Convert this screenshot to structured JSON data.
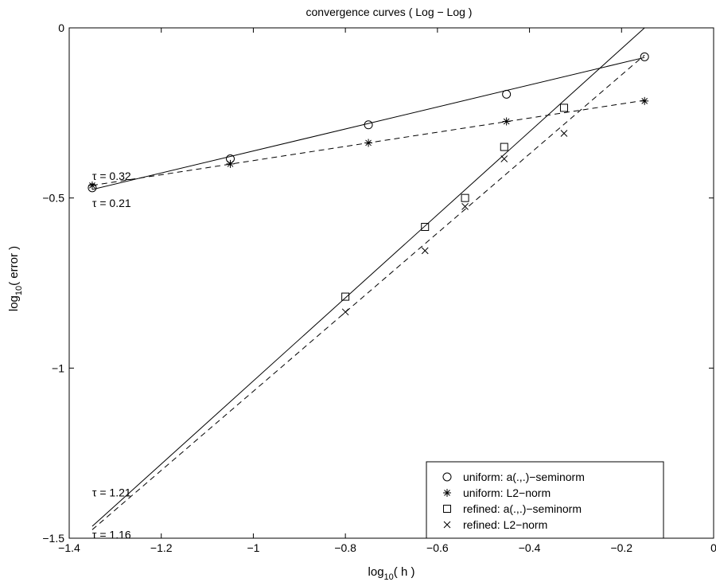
{
  "chart_data": {
    "type": "line",
    "title": "convergence curves ( Log − Log )",
    "xlabel_main": "log",
    "xlabel_sub": "10",
    "xlabel_tail": "( h )",
    "ylabel_main": "log",
    "ylabel_sub": "10",
    "ylabel_tail": "( error )",
    "xlim": [
      -1.4,
      0
    ],
    "ylim": [
      -1.5,
      0
    ],
    "xticks": [
      -1.4,
      -1.2,
      -1,
      -0.8,
      -0.6,
      -0.4,
      -0.2,
      0
    ],
    "xtick_labels": [
      "−1.4",
      "−1.2",
      "−1",
      "−0.8",
      "−0.6",
      "−0.4",
      "−0.2",
      "0"
    ],
    "yticks": [
      0,
      -0.5,
      -1,
      -1.5
    ],
    "ytick_labels": [
      "0",
      "−0.5",
      "−1",
      "−1.5"
    ],
    "grid": false,
    "legend_position": "lower-right",
    "series": [
      {
        "name": "uniform: a(.,.)−seminorm",
        "marker": "circle",
        "x": [
          -1.35,
          -1.05,
          -0.75,
          -0.45,
          -0.15
        ],
        "y": [
          -0.47,
          -0.385,
          -0.285,
          -0.195,
          -0.085
        ]
      },
      {
        "name": "uniform: L2−norm",
        "marker": "asterisk",
        "x": [
          -1.35,
          -1.05,
          -0.75,
          -0.45,
          -0.15
        ],
        "y": [
          -0.463,
          -0.4,
          -0.338,
          -0.275,
          -0.215
        ]
      },
      {
        "name": "refined: a(.,.)−seminorm",
        "marker": "square",
        "x": [
          -0.8,
          -0.627,
          -0.54,
          -0.455,
          -0.325
        ],
        "y": [
          -0.79,
          -0.585,
          -0.5,
          -0.35,
          -0.235
        ]
      },
      {
        "name": "refined: L2−norm",
        "marker": "x",
        "x": [
          -0.8,
          -0.627,
          -0.54,
          -0.455,
          -0.325
        ],
        "y": [
          -0.835,
          -0.655,
          -0.525,
          -0.385,
          -0.31
        ]
      }
    ],
    "fit_lines": [
      {
        "style": "solid",
        "x": [
          -1.35,
          -0.15
        ],
        "y": [
          -0.475,
          -0.087
        ]
      },
      {
        "style": "dashed",
        "x": [
          -1.35,
          -0.15
        ],
        "y": [
          -0.463,
          -0.213
        ]
      },
      {
        "style": "solid",
        "x": [
          -1.35,
          -0.15
        ],
        "y": [
          -1.465,
          0.0
        ]
      },
      {
        "style": "dashed",
        "x": [
          -1.35,
          -0.15
        ],
        "y": [
          -1.475,
          -0.08
        ]
      }
    ],
    "annotations": [
      {
        "text": "τ = 0.32",
        "x": -1.35,
        "y": -0.435
      },
      {
        "text": "τ = 0.21",
        "x": -1.35,
        "y": -0.515
      },
      {
        "text": "τ = 1.21",
        "x": -1.35,
        "y": -1.365
      },
      {
        "text": "τ = 1.16",
        "x": -1.35,
        "y": -1.49
      }
    ]
  }
}
